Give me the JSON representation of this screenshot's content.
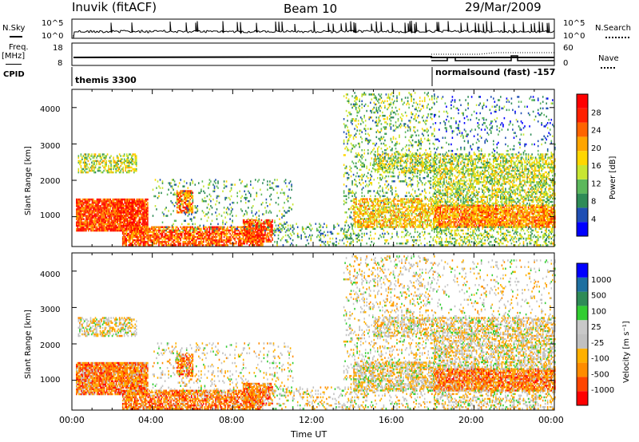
{
  "header": {
    "station": "Inuvik (fitACF)",
    "beam": "Beam 10",
    "date": "29/Mar/2009"
  },
  "side_labels": {
    "nsky": "N.Sky",
    "freq": "Freq.",
    "mhz": "[MHz]",
    "cpid": "CPID",
    "nsearch": "N.Search",
    "nave": "Nave"
  },
  "cpid_segments": [
    {
      "label": "themis 3300",
      "start_hour": 0
    },
    {
      "label": "normalsound (fast) -157",
      "start_hour": 18
    }
  ],
  "colors": {
    "power_scale": [
      "#0000ff",
      "#1f4fb4",
      "#2e8b57",
      "#5cb85c",
      "#c8e632",
      "#ffd700",
      "#ffa500",
      "#ff6400",
      "#ff2000",
      "#ff0000"
    ],
    "velocity_scale": [
      "#ff0000",
      "#ff4500",
      "#ff8c00",
      "#ffb000",
      "#c0c0c0",
      "#c8c8c8",
      "#32cd32",
      "#2e8b57",
      "#1e6fa0",
      "#0000ff"
    ]
  },
  "chart_data": [
    {
      "type": "line",
      "name": "N.Sky / N.Search",
      "ylabel_left": "N.Sky",
      "ylabel_right": "N.Search",
      "yticks_left": [
        "10^5",
        "10^0"
      ],
      "yticks_right": [
        "10^5",
        "10^0"
      ],
      "scale": "log"
    },
    {
      "type": "line",
      "name": "Freq / Nave",
      "ylabel_left": "Freq. [MHz]",
      "ylabel_right": "Nave",
      "yticks_left": [
        "18",
        "8"
      ],
      "yticks_right": [
        "60",
        "0"
      ]
    },
    {
      "type": "heatmap",
      "name": "power",
      "ylabel": "Slant Range [km]",
      "ylim": [
        180,
        4500
      ],
      "yticks": [
        "1000",
        "2000",
        "3000",
        "4000"
      ],
      "xlim": [
        0,
        24
      ],
      "xticks": [
        "00:00",
        "04:00",
        "08:00",
        "12:00",
        "16:00",
        "20:00",
        "00:00"
      ],
      "colorbar_label": "Power [dB]",
      "colorbar_ticks": [
        "4",
        "8",
        "12",
        "16",
        "20",
        "24",
        "28"
      ]
    },
    {
      "type": "heatmap",
      "name": "velocity",
      "ylabel": "Slant Range [km]",
      "ylim": [
        180,
        4500
      ],
      "yticks": [
        "1000",
        "2000",
        "3000",
        "4000"
      ],
      "xlim": [
        0,
        24
      ],
      "xticks": [
        "00:00",
        "04:00",
        "08:00",
        "12:00",
        "16:00",
        "20:00",
        "00:00"
      ],
      "xlabel": "Time UT",
      "colorbar_label": "Velocity [m s⁻¹]",
      "colorbar_ticks": [
        "-1000",
        "-500",
        "-100",
        "-25",
        "25",
        "100",
        "500",
        "1000"
      ]
    }
  ]
}
